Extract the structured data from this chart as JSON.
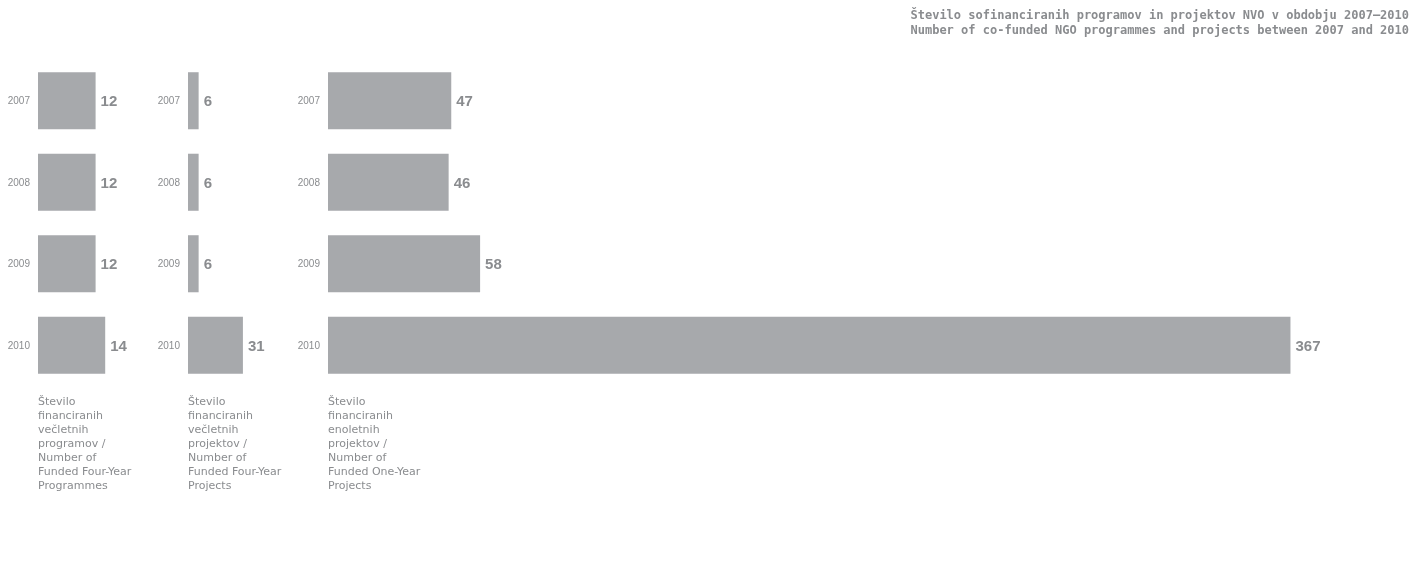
{
  "chart_data": [
    {
      "type": "bar",
      "orientation": "horizontal",
      "categories": [
        "2007",
        "2008",
        "2009",
        "2010"
      ],
      "values": [
        12,
        12,
        12,
        14
      ],
      "color": "#a7a9ac",
      "data_labels": true,
      "tick_labels": "y",
      "xlabel": "Število financiranih večletnih programov / Number of Funded Four-Year Programmes"
    },
    {
      "type": "bar",
      "orientation": "horizontal",
      "categories": [
        "2007",
        "2008",
        "2009",
        "2010"
      ],
      "values": [
        6,
        6,
        6,
        31
      ],
      "color": "#a7a9ac",
      "data_labels": true,
      "tick_labels": "y",
      "xlabel": "Število financiranih večletnih projektov / Number of Funded Four-Year Projects"
    },
    {
      "type": "bar",
      "orientation": "horizontal",
      "title": "Število sofinanciranih programov in projektov NVO v obdobju 2007–2010",
      "subtitle": "Number of co-funded NGO programmes and projects between 2007 and 2010",
      "categories": [
        "2007",
        "2008",
        "2009",
        "2010"
      ],
      "values": [
        47,
        46,
        58,
        367
      ],
      "color": "#a7a9ac",
      "data_labels": true,
      "tick_labels": "y",
      "xlabel": "Število financiranih enoletnih projektov / Number of Funded One-Year Projects"
    }
  ]
}
